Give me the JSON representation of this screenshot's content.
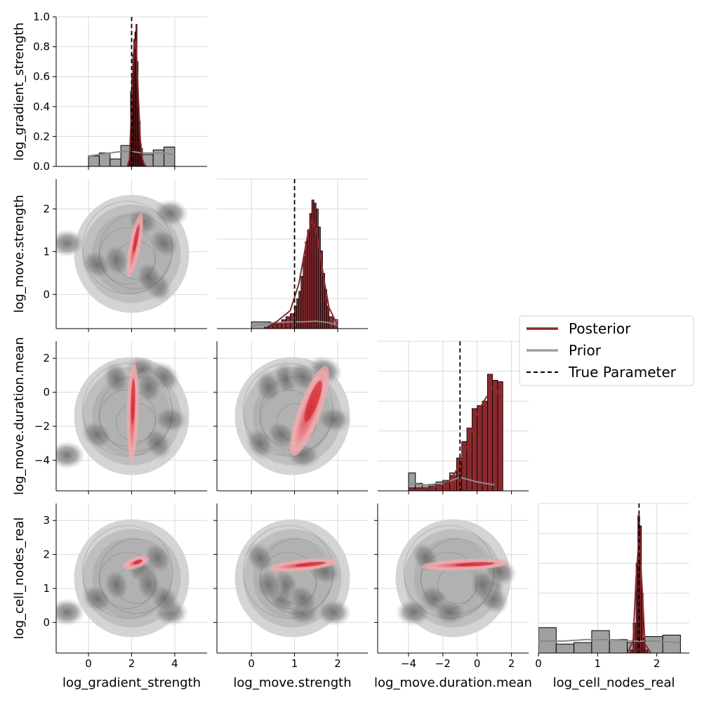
{
  "chart_data": {
    "type": "pairplot",
    "variables": [
      "log_gradient_strength",
      "log_move.strength",
      "log_move.duration.mean",
      "log_cell_nodes_real"
    ],
    "true_parameters": [
      2.0,
      1.0,
      -1.0,
      1.7
    ],
    "colors": {
      "posterior": "#8b2a2e",
      "posterior_kde": "#e8575d",
      "prior": "#a0a0a0",
      "prior_dark": "#595959",
      "grid": "#d9d9d9"
    },
    "legend": {
      "placement": "right-middle",
      "entries": [
        {
          "label": "Posterior",
          "style": "solid",
          "color": "#8b2a2e"
        },
        {
          "label": "Prior",
          "style": "solid",
          "color": "#a0a0a0"
        },
        {
          "label": "True Parameter",
          "style": "dashed",
          "color": "#000000"
        }
      ]
    },
    "axes": [
      {
        "name": "log_gradient_strength",
        "range": [
          -1.5,
          5.5
        ],
        "ticks": [
          0,
          2,
          4
        ]
      },
      {
        "name": "log_move.strength",
        "range": [
          -0.8,
          2.7
        ],
        "ticks": [
          0,
          1,
          2
        ]
      },
      {
        "name": "log_move.duration.mean",
        "range": [
          -5.8,
          3.0
        ],
        "ticks": [
          -4,
          -2,
          0,
          2
        ]
      },
      {
        "name": "log_cell_nodes_real",
        "range": [
          -0.9,
          3.5
        ],
        "ticks": [
          0,
          1,
          2,
          3
        ]
      }
    ],
    "diag_ylim": [
      0,
      1.0
    ],
    "diag_yticks": [
      0.0,
      0.2,
      0.4,
      0.6,
      0.8,
      1.0
    ],
    "diagonals": [
      {
        "variable": "log_gradient_strength",
        "xlim": [
          -1.5,
          5.5
        ],
        "prior_hist": {
          "edges": [
            0,
            0.5,
            1,
            1.5,
            2,
            2.5,
            3,
            3.5,
            4
          ],
          "heights": [
            0.07,
            0.09,
            0.05,
            0.14,
            0.12,
            0.08,
            0.11,
            0.13
          ]
        },
        "prior_kde": {
          "x": [
            0,
            0.5,
            1,
            1.5,
            2,
            2.5,
            3,
            3.5,
            4
          ],
          "y": [
            0.07,
            0.08,
            0.09,
            0.1,
            0.1,
            0.09,
            0.09,
            0.09,
            0.08
          ]
        },
        "posterior_hist": {
          "edges": [
            1.85,
            1.9,
            1.95,
            2.0,
            2.05,
            2.1,
            2.15,
            2.2,
            2.25,
            2.3,
            2.35,
            2.4,
            2.45,
            2.5,
            2.55,
            2.6
          ],
          "heights": [
            0.03,
            0.1,
            0.5,
            0.62,
            0.75,
            0.85,
            0.9,
            0.95,
            0.7,
            0.4,
            0.3,
            0.15,
            0.08,
            0.04,
            0.02
          ]
        },
        "posterior_kde": {
          "x": [
            1.8,
            1.9,
            2.0,
            2.1,
            2.2,
            2.3,
            2.4,
            2.5,
            2.6,
            2.7
          ],
          "y": [
            0.0,
            0.05,
            0.4,
            0.78,
            0.85,
            0.5,
            0.18,
            0.05,
            0.01,
            0.0
          ]
        }
      },
      {
        "variable": "log_move.strength",
        "xlim": [
          -0.8,
          2.7
        ],
        "prior_hist": {
          "edges": [
            0,
            0.45,
            0.9,
            1.35,
            1.8,
            2.0
          ],
          "heights": [
            0.045,
            0.035,
            0.04,
            0.05,
            0.06
          ]
        },
        "prior_kde": {
          "x": [
            0,
            0.3,
            0.6,
            0.9,
            1.2,
            1.5,
            1.8,
            2.0
          ],
          "y": [
            0.02,
            0.03,
            0.04,
            0.045,
            0.045,
            0.05,
            0.04,
            0.02
          ]
        },
        "posterior_hist": {
          "edges": [
            0.3,
            0.4,
            0.5,
            0.6,
            0.7,
            0.8,
            0.9,
            1.0,
            1.05,
            1.1,
            1.15,
            1.2,
            1.25,
            1.3,
            1.35,
            1.4,
            1.45,
            1.5,
            1.55,
            1.6,
            1.65,
            1.7,
            1.75,
            1.8,
            1.9,
            2.0
          ],
          "heights": [
            0.01,
            0.02,
            0.03,
            0.04,
            0.06,
            0.08,
            0.1,
            0.15,
            0.2,
            0.25,
            0.35,
            0.48,
            0.58,
            0.66,
            0.77,
            0.86,
            0.84,
            0.8,
            0.68,
            0.52,
            0.37,
            0.26,
            0.15,
            0.08,
            0.03
          ]
        },
        "posterior_kde": {
          "x": [
            0.3,
            0.6,
            0.9,
            1.1,
            1.3,
            1.4,
            1.5,
            1.6,
            1.7,
            1.8,
            2.0
          ],
          "y": [
            0.0,
            0.05,
            0.12,
            0.3,
            0.62,
            0.72,
            0.66,
            0.48,
            0.3,
            0.14,
            0.02
          ]
        }
      },
      {
        "variable": "log_move.duration.mean",
        "xlim": [
          -5.8,
          3.0
        ],
        "prior_hist": {
          "edges": [
            -4,
            -3.6,
            -3.2,
            -2.8,
            -2.4,
            -2.0,
            -1.6,
            -1.2
          ],
          "heights": [
            0.12,
            0.05,
            0.04,
            0.04,
            0.06,
            0.07,
            0.12
          ]
        },
        "prior_kde": {
          "x": [
            -4,
            -3,
            -2,
            -1,
            0,
            1
          ],
          "y": [
            0.05,
            0.04,
            0.05,
            0.09,
            0.06,
            0.04
          ]
        },
        "posterior_hist": {
          "edges": [
            -4,
            -3.6,
            -3.2,
            -2.8,
            -2.4,
            -2.0,
            -1.6,
            -1.2,
            -0.9,
            -0.6,
            -0.3,
            0,
            0.3,
            0.6,
            0.9,
            1.2,
            1.5
          ],
          "heights": [
            0.02,
            0.02,
            0.02,
            0.03,
            0.04,
            0.06,
            0.1,
            0.22,
            0.33,
            0.42,
            0.55,
            0.57,
            0.6,
            0.78,
            0.74,
            0.73
          ]
        },
        "posterior_kde": {
          "x": [
            -4,
            -3,
            -2,
            -1.5,
            -1,
            -0.5,
            0,
            0.5,
            1,
            1.5
          ],
          "y": [
            0.0,
            0.01,
            0.04,
            0.08,
            0.18,
            0.32,
            0.52,
            0.62,
            0.7,
            0.6
          ]
        }
      },
      {
        "variable": "log_cell_nodes_real",
        "xlim": [
          0,
          2.55
        ],
        "prior_hist": {
          "edges": [
            0,
            0.3,
            0.6,
            0.9,
            1.2,
            1.5,
            1.8,
            2.1,
            2.4
          ],
          "heights": [
            0.17,
            0.06,
            0.07,
            0.15,
            0.09,
            0.07,
            0.11,
            0.12
          ]
        },
        "prior_kde": {
          "x": [
            0,
            0.4,
            0.8,
            1.2,
            1.6,
            2.0,
            2.4
          ],
          "y": [
            0.08,
            0.08,
            0.09,
            0.09,
            0.08,
            0.08,
            0.07
          ]
        },
        "posterior_hist": {
          "edges": [
            1.55,
            1.6,
            1.65,
            1.68,
            1.71,
            1.74,
            1.77,
            1.8,
            1.85
          ],
          "heights": [
            0.02,
            0.2,
            0.6,
            0.92,
            0.85,
            0.4,
            0.1,
            0.02
          ]
        },
        "posterior_kde": {
          "x": [
            1.5,
            1.6,
            1.65,
            1.7,
            1.75,
            1.8,
            1.9
          ],
          "y": [
            0.0,
            0.08,
            0.5,
            0.78,
            0.45,
            0.06,
            0.0
          ]
        }
      }
    ],
    "prior_clusters": [
      [
        -1.5,
        1.2,
        -3.7
      ],
      [
        0.4,
        0.7,
        -2.5
      ],
      [
        1.3,
        0.8,
        0.8
      ],
      [
        2.5,
        1.7,
        1.3
      ],
      [
        3.2,
        0.2,
        -3.0
      ],
      [
        3.8,
        1.9,
        -1.6
      ],
      [
        3.5,
        1.2,
        0.9
      ],
      [
        2.8,
        0.4,
        0.3
      ]
    ],
    "posterior_ridges": [
      {
        "row": 1,
        "col": 0,
        "from": [
          1.9,
          0.5
        ],
        "to": [
          2.4,
          1.8
        ],
        "width": 0.35
      },
      {
        "row": 2,
        "col": 0,
        "from": [
          2.0,
          -3.8
        ],
        "to": [
          2.1,
          1.5
        ],
        "width": 0.5
      },
      {
        "row": 2,
        "col": 1,
        "from": [
          1.0,
          -3.5
        ],
        "to": [
          1.7,
          1.3
        ],
        "width": 0.6
      },
      {
        "row": 3,
        "col": 0,
        "from": [
          1.8,
          1.67
        ],
        "to": [
          2.6,
          1.85
        ],
        "width": 0.08
      },
      {
        "row": 3,
        "col": 1,
        "from": [
          0.5,
          1.6
        ],
        "to": [
          1.9,
          1.78
        ],
        "width": 0.12
      },
      {
        "row": 3,
        "col": 2,
        "from": [
          -3.0,
          1.65
        ],
        "to": [
          1.6,
          1.75
        ],
        "width": 0.1
      }
    ]
  }
}
